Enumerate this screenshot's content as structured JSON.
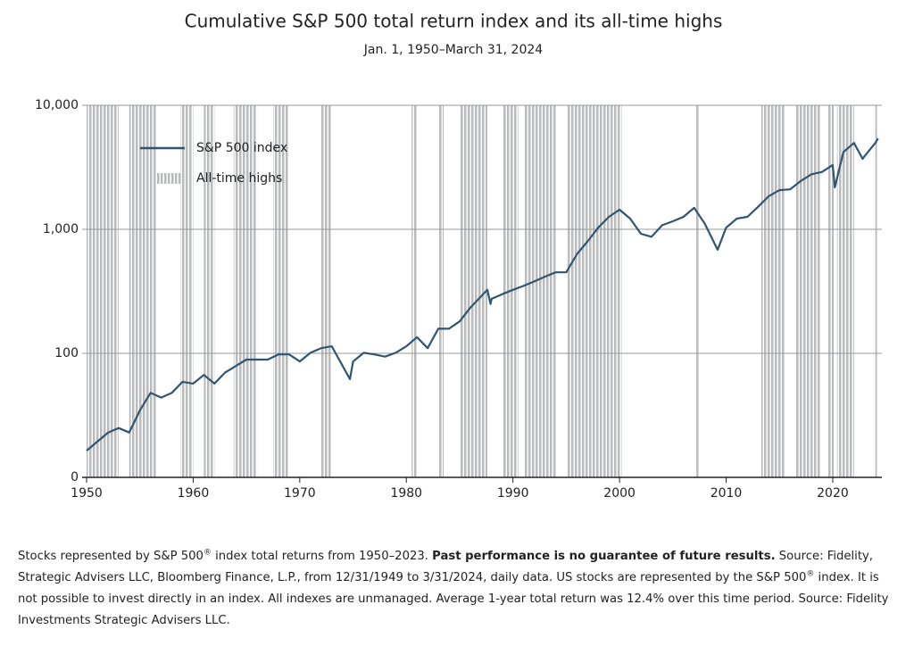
{
  "chart_data": {
    "type": "line",
    "title": "Cumulative S&P 500 total return index and its all-time highs",
    "subtitle": "Jan. 1, 1950–March 31, 2024",
    "log_scale": true,
    "grid": true,
    "legend": "upper left",
    "xlim": [
      1950,
      2024.25
    ],
    "xticks": [
      1950,
      1960,
      1970,
      1980,
      1990,
      2000,
      2010,
      2020
    ],
    "ylim": [
      10,
      10000
    ],
    "yticks": [
      {
        "value": 10,
        "label": "0"
      },
      100,
      {
        "value": 1000,
        "label": "1,000"
      },
      {
        "value": 10000,
        "label": "10,000"
      }
    ],
    "x": [
      1950,
      1952,
      1953,
      1954,
      1955,
      1956,
      1957,
      1958,
      1959,
      1960,
      1961,
      1962,
      1963,
      1964,
      1965,
      1966,
      1967,
      1968,
      1969,
      1970,
      1971,
      1972,
      1973,
      1974.7,
      1975,
      1976,
      1977,
      1978,
      1979,
      1980,
      1981,
      1982,
      1983,
      1984,
      1985,
      1986,
      1987.6,
      1987.9,
      1988,
      1989,
      1990,
      1991,
      1992,
      1993,
      1994,
      1995,
      1996,
      1997,
      1998,
      1999,
      2000,
      2001,
      2002,
      2003,
      2004,
      2005,
      2006,
      2007,
      2008,
      2009.2,
      2010,
      2011,
      2012,
      2013,
      2014,
      2015,
      2016,
      2017,
      2018,
      2019,
      2020,
      2020.2,
      2021,
      2022,
      2022.8,
      2023,
      2024,
      2024.25
    ],
    "series": [
      {
        "name": "S&P 500 index",
        "color": "#2e5573",
        "values": [
          16.4,
          22.9,
          25,
          23,
          34.6,
          48,
          44,
          48,
          59,
          57,
          67,
          57,
          70,
          79,
          89,
          89,
          89,
          98,
          98,
          86,
          101,
          110,
          114,
          62,
          86,
          101,
          98,
          94,
          101,
          114,
          135,
          110,
          158,
          158,
          181,
          233,
          325,
          250,
          275,
          300,
          325,
          350,
          380,
          415,
          450,
          450,
          630,
          800,
          1030,
          1260,
          1440,
          1220,
          920,
          870,
          1080,
          1160,
          1260,
          1490,
          1110,
          684,
          1030,
          1220,
          1260,
          1520,
          1850,
          2070,
          2100,
          2450,
          2780,
          2900,
          3300,
          2180,
          4200,
          4970,
          3700,
          3900,
          4970,
          5400
        ]
      },
      {
        "name": "All-time highs",
        "color": "#c4c6c8",
        "ranges": [
          [
            1950,
            1953
          ],
          [
            1954,
            1956.5
          ],
          [
            1958.8,
            1960
          ],
          [
            1961,
            1962
          ],
          [
            1963.8,
            1966
          ],
          [
            1967.5,
            1969
          ],
          [
            1972,
            1973
          ],
          [
            1980.5,
            1981
          ],
          [
            1983,
            1983.5
          ],
          [
            1985,
            1987.6
          ],
          [
            1989,
            1990.5
          ],
          [
            1991,
            1994
          ],
          [
            1995,
            2000.2
          ],
          [
            2007.2,
            2007.5
          ],
          [
            2013.3,
            2015.5
          ],
          [
            2016.5,
            2018.8
          ],
          [
            2019.5,
            2020.1
          ],
          [
            2020.4,
            2022
          ],
          [
            2024,
            2024.25
          ]
        ]
      }
    ],
    "footnote": [
      {
        "text": "Stocks represented by S&P 500"
      },
      {
        "text": "®",
        "sup": true
      },
      {
        "text": " index total returns from 1950–2023. "
      },
      {
        "text": "Past performance is no guarantee of future results.",
        "bold": true
      },
      {
        "text": " Source: Fidelity, Strategic Advisers LLC, Bloomberg Finance, L.P., from 12/31/1949 to 3/31/2024, daily data. US stocks are represented by the S&P 500"
      },
      {
        "text": "®",
        "sup": true
      },
      {
        "text": " index. It is not possible to invest directly in an index. All indexes are unmanaged. Average 1-year total return was 12.4% over this time period. Source: Fidelity Investments Strategic Advisers LLC."
      }
    ]
  }
}
